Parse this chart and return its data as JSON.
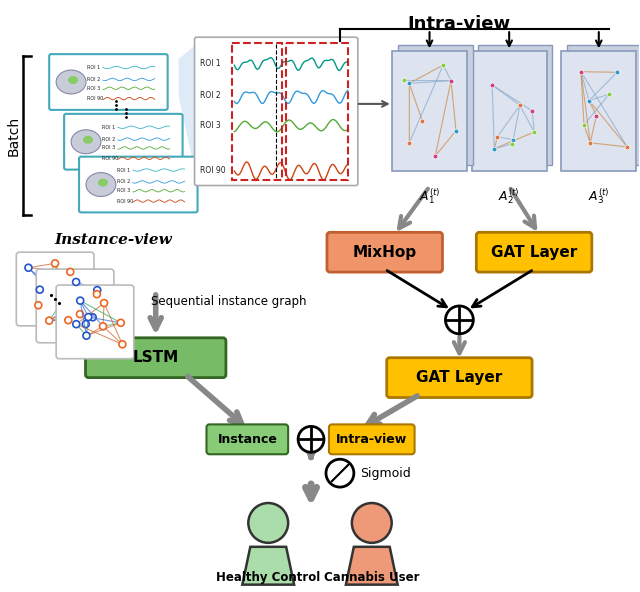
{
  "title": "Intra-view",
  "bg_color": "#ffffff",
  "batch_label": "Batch",
  "instance_view_label": "Instance-view",
  "seq_instance_label": "Sequential instance graph",
  "lstm_label": "LSTM",
  "mixhop_label": "MixHop",
  "gat_layer_label1": "GAT Layer",
  "gat_layer_label2": "GAT Layer",
  "instance_label": "Instance",
  "intra_view_label": "Intra-view",
  "sigmoid_label": "Sigmoid",
  "healthy_label": "Healthy Control",
  "cannabis_label": "Cannabis User",
  "roi_labels": [
    "ROI 1",
    "ROI 2",
    "ROI 3",
    "ROI 90"
  ],
  "mixhop_color": "#F0956A",
  "gat_color": "#FFC000",
  "lstm_color": "#77BB66",
  "instance_color": "#88CC77",
  "intraview_color": "#FFC000",
  "healthy_color": "#AADDAA",
  "cannabis_color": "#EE9977",
  "arrow_gray": "#888888",
  "panel_color": "#dde3ef",
  "panel_edge": "#8899bb",
  "ts_bg": "#ffffff",
  "mini_panel_color": "#44aabb"
}
